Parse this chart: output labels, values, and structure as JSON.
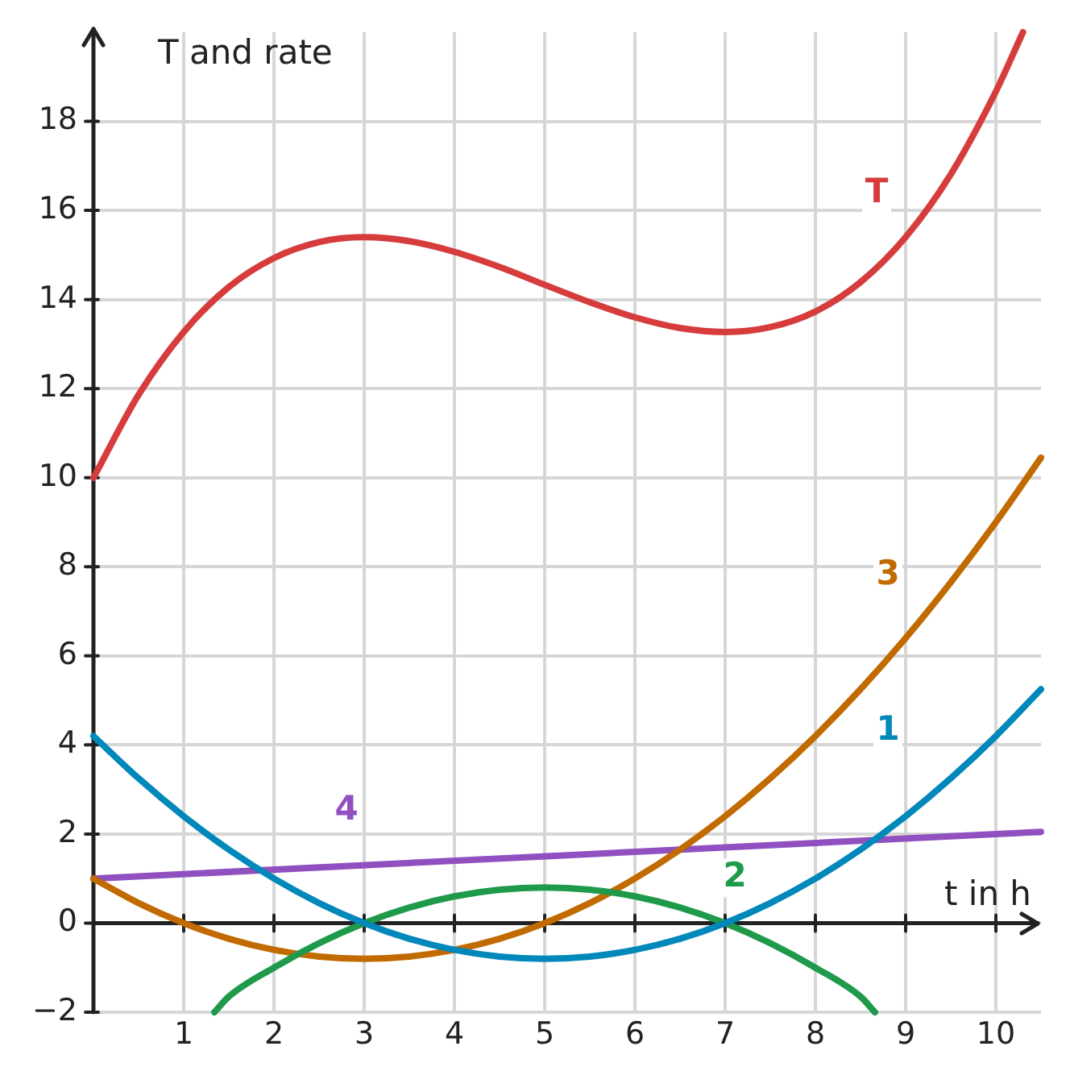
{
  "chart_data": {
    "type": "line",
    "xlabel": "t in h",
    "ylabel": "T and rate",
    "xlim": [
      0,
      10.5
    ],
    "ylim": [
      -2,
      20
    ],
    "xticks": [
      {
        "value": 0,
        "label": null
      },
      1,
      2,
      3,
      4,
      5,
      6,
      7,
      8,
      9,
      10
    ],
    "yticks": [
      {
        "value": -2,
        "label": "−2"
      },
      0,
      2,
      4,
      6,
      8,
      10,
      12,
      14,
      16,
      18
    ],
    "grid": true,
    "legend": false,
    "marker": "none",
    "line_style": "solid",
    "series": [
      {
        "name": "T",
        "color": "#d63c3c",
        "x": [
          0,
          0.5,
          1,
          1.5,
          2,
          2.5,
          3,
          3.5,
          4,
          4.5,
          5,
          5.5,
          6,
          6.5,
          7,
          7.5,
          8,
          8.5,
          9,
          9.5,
          10,
          10.3
        ],
        "values": [
          10,
          11.86,
          13.27,
          14.28,
          14.93,
          15.29,
          15.4,
          15.31,
          15.07,
          14.73,
          14.33,
          13.94,
          13.6,
          13.36,
          13.27,
          13.38,
          13.73,
          14.39,
          15.4,
          16.81,
          18.67,
          20
        ]
      },
      {
        "name": "1",
        "color": "#0088bb",
        "x": [
          0,
          0.5,
          1,
          1.5,
          2,
          2.5,
          3,
          3.5,
          4,
          4.5,
          5,
          5.5,
          6,
          6.5,
          7,
          7.5,
          8,
          8.5,
          9,
          9.5,
          10,
          10.5
        ],
        "values": [
          4.2,
          3.25,
          2.4,
          1.65,
          1,
          0.45,
          0,
          -0.35,
          -0.6,
          -0.75,
          -0.8,
          -0.75,
          -0.6,
          -0.35,
          0,
          0.45,
          1,
          1.65,
          2.4,
          3.25,
          4.2,
          5.25
        ]
      },
      {
        "name": "2",
        "color": "#1e9a4a",
        "x": [
          1.34,
          1.5,
          2,
          2.5,
          3,
          3.5,
          4,
          4.5,
          5,
          5.5,
          6,
          6.5,
          7,
          7.5,
          8,
          8.5,
          8.66
        ],
        "values": [
          -2,
          -1.65,
          -1,
          -0.45,
          0,
          0.35,
          0.6,
          0.75,
          0.8,
          0.75,
          0.6,
          0.35,
          0,
          -0.45,
          -1,
          -1.65,
          -2
        ]
      },
      {
        "name": "3",
        "color": "#c06a00",
        "x": [
          0,
          0.5,
          1,
          1.5,
          2,
          2.5,
          3,
          3.5,
          4,
          4.5,
          5,
          5.5,
          6,
          6.5,
          7,
          7.5,
          8,
          8.5,
          9,
          9.5,
          10,
          10.5
        ],
        "values": [
          1,
          0.45,
          0,
          -0.35,
          -0.6,
          -0.75,
          -0.8,
          -0.75,
          -0.6,
          -0.35,
          0,
          0.45,
          1,
          1.65,
          2.4,
          3.25,
          4.2,
          5.25,
          6.4,
          7.65,
          9,
          10.45
        ]
      },
      {
        "name": "4",
        "color": "#9050c0",
        "x": [
          0,
          10.5
        ],
        "values": [
          1,
          2.05
        ]
      }
    ]
  }
}
